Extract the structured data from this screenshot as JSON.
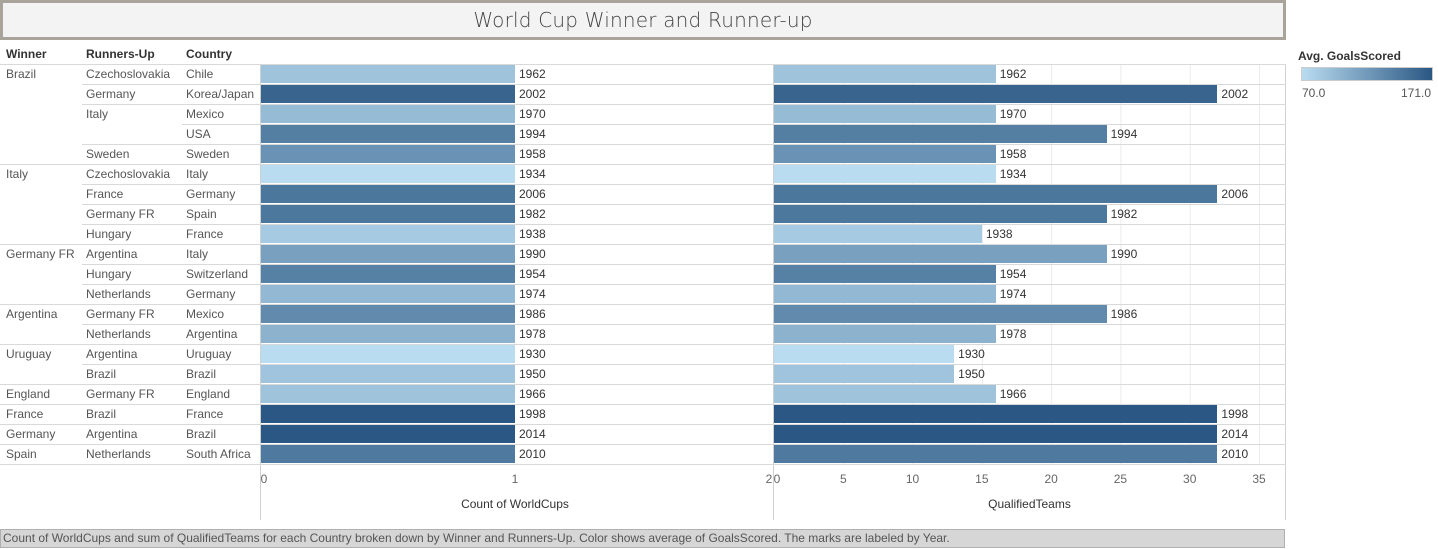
{
  "title": "World Cup Winner and Runner-up",
  "headers": {
    "winner": "Winner",
    "runners_up": "Runners-Up",
    "country": "Country"
  },
  "chart_data": {
    "type": "bar",
    "panels": [
      {
        "measure": "Count of WorldCups",
        "xlim": [
          0,
          2
        ],
        "ticks": [
          "0",
          "1",
          "2"
        ]
      },
      {
        "measure": "QualifiedTeams",
        "xlim": [
          0,
          35
        ],
        "ticks": [
          "0",
          "5",
          "10",
          "15",
          "20",
          "25",
          "30",
          "35"
        ]
      }
    ],
    "rows": [
      {
        "winner": "Brazil",
        "runners_up": "Czechoslovakia",
        "country": "Chile",
        "count": 1,
        "qualified": 16,
        "goals": 89,
        "year": "1962"
      },
      {
        "winner": "",
        "runners_up": "Germany",
        "country": "Korea/Japan",
        "count": 1,
        "qualified": 32,
        "goals": 161,
        "year": "2002"
      },
      {
        "winner": "",
        "runners_up": "Italy",
        "country": "Mexico",
        "count": 1,
        "qualified": 16,
        "goals": 95,
        "year": "1970"
      },
      {
        "winner": "",
        "runners_up": "",
        "country": "USA",
        "count": 1,
        "qualified": 24,
        "goals": 141,
        "year": "1994"
      },
      {
        "winner": "",
        "runners_up": "Sweden",
        "country": "Sweden",
        "count": 1,
        "qualified": 16,
        "goals": 126,
        "year": "1958"
      },
      {
        "winner": "Italy",
        "runners_up": "Czechoslovakia",
        "country": "Italy",
        "count": 1,
        "qualified": 16,
        "goals": 70,
        "year": "1934"
      },
      {
        "winner": "",
        "runners_up": "France",
        "country": "Germany",
        "count": 1,
        "qualified": 32,
        "goals": 147,
        "year": "2006"
      },
      {
        "winner": "",
        "runners_up": "Germany FR",
        "country": "Spain",
        "count": 1,
        "qualified": 24,
        "goals": 146,
        "year": "1982"
      },
      {
        "winner": "",
        "runners_up": "Hungary",
        "country": "France",
        "count": 1,
        "qualified": 15,
        "goals": 84,
        "year": "1938"
      },
      {
        "winner": "Germany FR",
        "runners_up": "Argentina",
        "country": "Italy",
        "count": 1,
        "qualified": 24,
        "goals": 115,
        "year": "1990"
      },
      {
        "winner": "",
        "runners_up": "Hungary",
        "country": "Switzerland",
        "count": 1,
        "qualified": 16,
        "goals": 140,
        "year": "1954"
      },
      {
        "winner": "",
        "runners_up": "Netherlands",
        "country": "Germany",
        "count": 1,
        "qualified": 16,
        "goals": 97,
        "year": "1974"
      },
      {
        "winner": "Argentina",
        "runners_up": "Germany FR",
        "country": "Mexico",
        "count": 1,
        "qualified": 24,
        "goals": 132,
        "year": "1986"
      },
      {
        "winner": "",
        "runners_up": "Netherlands",
        "country": "Argentina",
        "count": 1,
        "qualified": 16,
        "goals": 102,
        "year": "1978"
      },
      {
        "winner": "Uruguay",
        "runners_up": "Argentina",
        "country": "Uruguay",
        "count": 1,
        "qualified": 13,
        "goals": 70,
        "year": "1930"
      },
      {
        "winner": "",
        "runners_up": "Brazil",
        "country": "Brazil",
        "count": 1,
        "qualified": 13,
        "goals": 88,
        "year": "1950"
      },
      {
        "winner": "England",
        "runners_up": "Germany FR",
        "country": "England",
        "count": 1,
        "qualified": 16,
        "goals": 89,
        "year": "1966"
      },
      {
        "winner": "France",
        "runners_up": "Brazil",
        "country": "France",
        "count": 1,
        "qualified": 32,
        "goals": 171,
        "year": "1998"
      },
      {
        "winner": "Germany",
        "runners_up": "Argentina",
        "country": "Brazil",
        "count": 1,
        "qualified": 32,
        "goals": 171,
        "year": "2014"
      },
      {
        "winner": "Spain",
        "runners_up": "Netherlands",
        "country": "South Africa",
        "count": 1,
        "qualified": 32,
        "goals": 145,
        "year": "2010"
      }
    ],
    "color_legend": {
      "title": "Avg. GoalsScored",
      "min": 70.0,
      "max": 171.0,
      "min_label": "70.0",
      "max_label": "171.0",
      "color_low": "#b9dcf0",
      "color_high": "#2a5783"
    }
  },
  "footer": "Count of WorldCups and sum of QualifiedTeams for each Country broken down by Winner and Runners-Up.  Color shows average of GoalsScored.  The marks are labeled by Year."
}
